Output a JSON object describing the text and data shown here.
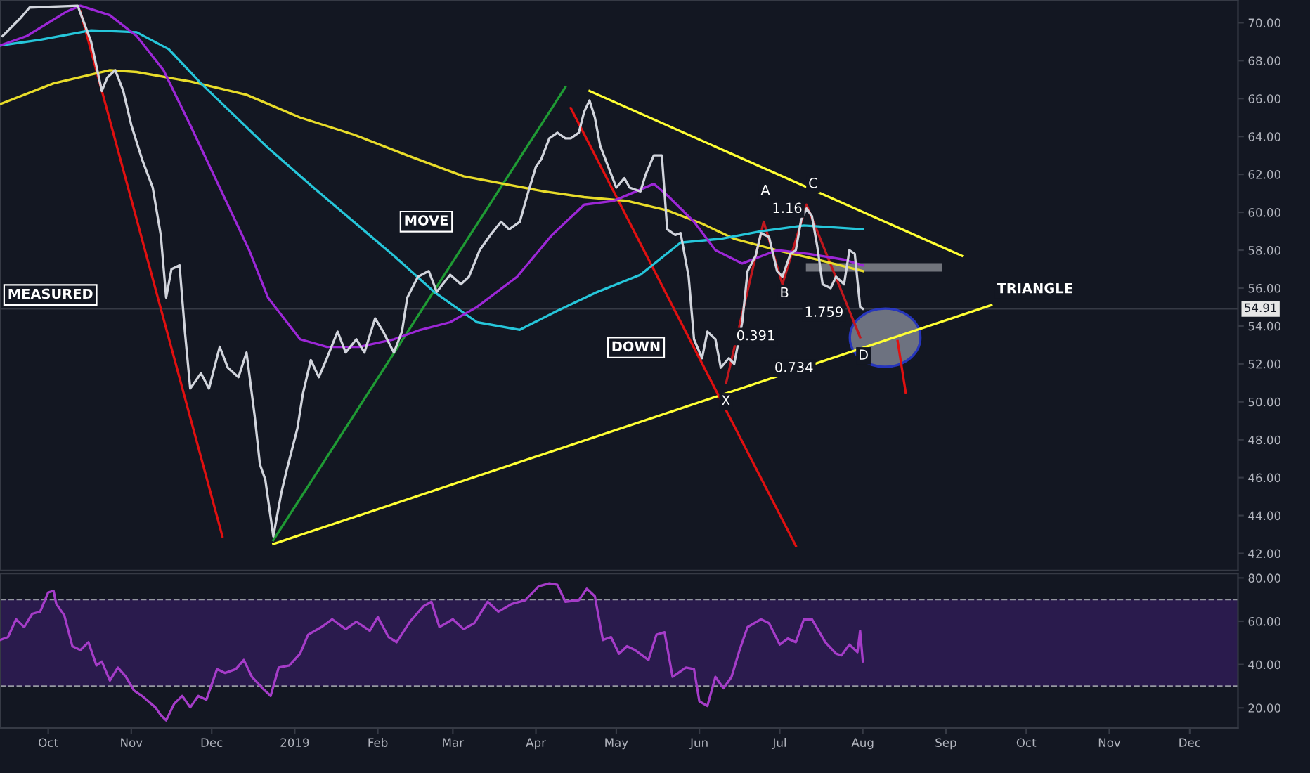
{
  "chart_data": [
    {
      "type": "line",
      "xlim": [
        "2018-09-13",
        "2019-12-19"
      ],
      "ylim": [
        41.1,
        71.2
      ],
      "tick_labels": "y",
      "grid": false,
      "yticks": [
        {
          "value": 42,
          "label": "42.00"
        },
        {
          "value": 44,
          "label": "44.00"
        },
        {
          "value": 46,
          "label": "46.00"
        },
        {
          "value": 48,
          "label": "48.00"
        },
        {
          "value": 50,
          "label": "50.00"
        },
        {
          "value": 52,
          "label": "52.00"
        },
        {
          "value": 54,
          "label": "54.00"
        },
        {
          "value": 56,
          "label": "56.00"
        },
        {
          "value": 58,
          "label": "58.00"
        },
        {
          "value": 60,
          "label": "60.00"
        },
        {
          "value": 62,
          "label": "62.00"
        },
        {
          "value": 64,
          "label": "64.00"
        },
        {
          "value": 66,
          "label": "66.00"
        },
        {
          "value": 68,
          "label": "68.00"
        },
        {
          "value": 70,
          "label": "70.00"
        }
      ],
      "ref_lines": [
        {
          "axis": "y",
          "value": 54.91,
          "label": "54.91",
          "color": "#363a45",
          "line_style": "solid"
        }
      ],
      "annotations": [
        "MEASURED",
        "MOVE",
        "DOWN",
        "TRIANGLE",
        "X",
        "A",
        "B",
        "C",
        "D",
        "0.391",
        "1.16",
        "1.759",
        "0.734"
      ],
      "series": [
        {
          "color": "#ffff33",
          "x": [
            "2018-12-24",
            "2019-09-18"
          ],
          "values": [
            42.5,
            55.1
          ]
        },
        {
          "color": "#ffff33",
          "x": [
            "2019-04-21",
            "2019-09-07"
          ],
          "values": [
            66.4,
            57.7
          ]
        },
        {
          "color": "#e01010",
          "x": [
            "2018-10-13",
            "2018-12-05"
          ],
          "values": [
            70.6,
            42.9
          ]
        },
        {
          "color": "#1f9a34",
          "x": [
            "2018-12-24",
            "2019-04-12"
          ],
          "values": [
            42.7,
            66.6
          ]
        },
        {
          "color": "#e01010",
          "x": [
            "2019-04-14",
            "2019-07-07"
          ],
          "values": [
            65.5,
            42.4
          ]
        },
        {
          "color": "#e01010",
          "x": [
            "2019-08-14",
            "2019-08-17"
          ],
          "values": [
            53.2,
            50.5
          ]
        },
        {
          "color": "#c0181e",
          "x": [
            "2019-06-11",
            "2019-06-25",
            "2019-07-02",
            "2019-07-11",
            "2019-07-31"
          ],
          "values": [
            51.0,
            59.5,
            56.2,
            60.4,
            53.4
          ]
        },
        {
          "color": "#e8dc2a",
          "x": [
            "2018-09-13",
            "2018-10-03",
            "2018-10-24",
            "2018-11-03",
            "2018-11-23",
            "2018-12-14",
            "2019-01-03",
            "2019-01-23",
            "2019-02-12",
            "2019-03-05",
            "2019-03-20",
            "2019-04-04",
            "2019-04-19",
            "2019-05-05",
            "2019-05-20",
            "2019-06-02",
            "2019-06-14",
            "2019-06-30",
            "2019-07-15",
            "2019-08-01"
          ],
          "values": [
            65.7,
            66.8,
            67.5,
            67.4,
            66.9,
            66.2,
            65.0,
            64.1,
            63.0,
            61.9,
            61.5,
            61.1,
            60.8,
            60.6,
            60.1,
            59.4,
            58.6,
            58.0,
            57.5,
            56.9
          ]
        },
        {
          "color": "#26c6da",
          "x": [
            "2018-09-13",
            "2018-09-28",
            "2018-10-17",
            "2018-11-03",
            "2018-11-15",
            "2018-11-27",
            "2018-12-22",
            "2019-01-08",
            "2019-01-23",
            "2019-02-07",
            "2019-02-22",
            "2019-03-10",
            "2019-03-26",
            "2019-04-09",
            "2019-04-24",
            "2019-05-10",
            "2019-05-25",
            "2019-06-09",
            "2019-06-24",
            "2019-07-10",
            "2019-08-01"
          ],
          "values": [
            68.8,
            69.1,
            69.6,
            69.5,
            68.6,
            66.8,
            63.4,
            61.3,
            59.5,
            57.7,
            55.8,
            54.2,
            53.8,
            54.8,
            55.8,
            56.7,
            58.4,
            58.6,
            59.0,
            59.3,
            59.1
          ]
        },
        {
          "color": "#9c27d6",
          "x": [
            "2018-09-13",
            "2018-09-23",
            "2018-10-08",
            "2018-10-13",
            "2018-10-24",
            "2018-11-03",
            "2018-11-13",
            "2018-11-23",
            "2018-12-04",
            "2018-12-15",
            "2018-12-22",
            "2019-01-03",
            "2019-01-13",
            "2019-01-25",
            "2019-02-07",
            "2019-02-17",
            "2019-02-28",
            "2019-03-10",
            "2019-03-25",
            "2019-04-07",
            "2019-04-19",
            "2019-04-30",
            "2019-05-15",
            "2019-05-20",
            "2019-05-30",
            "2019-06-07",
            "2019-06-17",
            "2019-06-30",
            "2019-07-12",
            "2019-07-25",
            "2019-08-01"
          ],
          "values": [
            68.8,
            69.3,
            70.6,
            70.9,
            70.4,
            69.3,
            67.5,
            64.6,
            61.3,
            58.0,
            55.5,
            53.3,
            52.9,
            52.9,
            53.3,
            53.8,
            54.2,
            55.0,
            56.6,
            58.8,
            60.4,
            60.6,
            61.5,
            60.9,
            59.5,
            58.0,
            57.3,
            58.0,
            57.8,
            57.5,
            57.2
          ]
        },
        {
          "color": "#d1d4dc",
          "x": [
            "2018-09-14",
            "2018-09-21",
            "2018-09-24",
            "2018-10-12",
            "2018-10-17",
            "2018-10-21",
            "2018-10-23",
            "2018-10-26",
            "2018-10-29",
            "2018-11-01",
            "2018-11-05",
            "2018-11-09",
            "2018-11-12",
            "2018-11-14",
            "2018-11-16",
            "2018-11-19",
            "2018-11-21",
            "2018-11-23",
            "2018-11-27",
            "2018-11-30",
            "2018-12-04",
            "2018-12-07",
            "2018-12-11",
            "2018-12-14",
            "2018-12-17",
            "2018-12-19",
            "2018-12-21",
            "2018-12-22",
            "2018-12-24",
            "2018-12-27",
            "2018-12-29",
            "2019-01-02",
            "2019-01-04",
            "2019-01-07",
            "2019-01-10",
            "2019-01-13",
            "2019-01-17",
            "2019-01-20",
            "2019-01-24",
            "2019-01-27",
            "2019-01-31",
            "2019-02-03",
            "2019-02-07",
            "2019-02-10",
            "2019-02-12",
            "2019-02-16",
            "2019-02-20",
            "2019-02-23",
            "2019-02-28",
            "2019-03-04",
            "2019-03-07",
            "2019-03-11",
            "2019-03-15",
            "2019-03-19",
            "2019-03-22",
            "2019-03-26",
            "2019-03-29",
            "2019-04-01",
            "2019-04-03",
            "2019-04-06",
            "2019-04-09",
            "2019-04-12",
            "2019-04-14",
            "2019-04-17",
            "2019-04-19",
            "2019-04-21",
            "2019-04-23",
            "2019-04-25",
            "2019-04-28",
            "2019-05-01",
            "2019-05-04",
            "2019-05-06",
            "2019-05-10",
            "2019-05-12",
            "2019-05-15",
            "2019-05-18",
            "2019-05-20",
            "2019-05-23",
            "2019-05-25",
            "2019-05-28",
            "2019-05-30",
            "2019-06-02",
            "2019-06-04",
            "2019-06-07",
            "2019-06-09",
            "2019-06-12",
            "2019-06-14",
            "2019-06-17",
            "2019-06-19",
            "2019-06-22",
            "2019-06-24",
            "2019-06-27",
            "2019-06-30",
            "2019-07-02",
            "2019-07-05",
            "2019-07-07",
            "2019-07-09",
            "2019-07-11",
            "2019-07-13",
            "2019-07-15",
            "2019-07-17",
            "2019-07-20",
            "2019-07-22",
            "2019-07-25",
            "2019-07-27",
            "2019-07-29",
            "2019-07-31",
            "2019-08-01"
          ],
          "values": [
            69.3,
            70.3,
            70.8,
            70.9,
            69.0,
            66.4,
            67.1,
            67.5,
            66.4,
            64.6,
            62.8,
            61.3,
            58.8,
            55.5,
            57.0,
            57.2,
            53.7,
            50.7,
            51.5,
            50.7,
            52.9,
            51.8,
            51.3,
            52.6,
            49.3,
            46.7,
            45.9,
            44.9,
            42.9,
            45.2,
            46.4,
            48.6,
            50.4,
            52.2,
            51.3,
            52.3,
            53.7,
            52.6,
            53.3,
            52.6,
            54.4,
            53.7,
            52.6,
            53.7,
            55.5,
            56.6,
            56.9,
            55.8,
            56.7,
            56.2,
            56.6,
            58.0,
            58.8,
            59.5,
            59.1,
            59.5,
            61.0,
            62.4,
            62.8,
            63.9,
            64.2,
            63.9,
            63.9,
            64.2,
            65.3,
            65.9,
            65.0,
            63.5,
            62.4,
            61.3,
            61.8,
            61.3,
            61.1,
            62.0,
            63.0,
            63.0,
            59.1,
            58.8,
            58.9,
            56.6,
            53.3,
            52.3,
            53.7,
            53.3,
            51.8,
            52.3,
            52.0,
            54.2,
            56.9,
            57.7,
            58.9,
            58.7,
            56.9,
            56.6,
            57.8,
            58.0,
            59.6,
            60.2,
            59.8,
            58.2,
            56.2,
            56.0,
            56.6,
            56.2,
            58.0,
            57.8,
            55.0,
            54.91
          ]
        }
      ]
    },
    {
      "type": "line",
      "xlim": [
        "2018-09-13",
        "2019-12-19"
      ],
      "ylim": [
        10.6,
        82.0
      ],
      "grid": false,
      "xticks": [
        {
          "value": "2018-10-01",
          "label": "Oct"
        },
        {
          "value": "2018-11-01",
          "label": "Nov"
        },
        {
          "value": "2018-12-01",
          "label": "Dec"
        },
        {
          "value": "2019-01-01",
          "label": "2019"
        },
        {
          "value": "2019-02-01",
          "label": "Feb"
        },
        {
          "value": "2019-03-01",
          "label": "Mar"
        },
        {
          "value": "2019-04-01",
          "label": "Apr"
        },
        {
          "value": "2019-05-01",
          "label": "May"
        },
        {
          "value": "2019-06-01",
          "label": "Jun"
        },
        {
          "value": "2019-07-01",
          "label": "Jul"
        },
        {
          "value": "2019-08-01",
          "label": "Aug"
        },
        {
          "value": "2019-09-01",
          "label": "Sep"
        },
        {
          "value": "2019-10-01",
          "label": "Oct"
        },
        {
          "value": "2019-11-01",
          "label": "Nov"
        },
        {
          "value": "2019-12-01",
          "label": "Dec"
        }
      ],
      "yticks": [
        {
          "value": 20,
          "label": "20.00"
        },
        {
          "value": 40,
          "label": "40.00"
        },
        {
          "value": 60,
          "label": "60.00"
        },
        {
          "value": 80,
          "label": "80.00"
        }
      ],
      "ref_lines": [
        {
          "axis": "y",
          "value": 70,
          "color": "#9598a1",
          "line_style": "dashed"
        },
        {
          "axis": "y",
          "value": 30,
          "color": "#9598a1",
          "line_style": "dashed"
        }
      ],
      "bands": [
        {
          "axis": "y",
          "from": 30,
          "to": 70,
          "color": "#2a1b4d"
        }
      ],
      "series": [
        {
          "color": "#a53cc8",
          "x": [
            "2018-09-13",
            "2018-09-16",
            "2018-09-19",
            "2018-09-22",
            "2018-09-25",
            "2018-09-28",
            "2018-10-01",
            "2018-10-03",
            "2018-10-04",
            "2018-10-07",
            "2018-10-10",
            "2018-10-13",
            "2018-10-16",
            "2018-10-19",
            "2018-10-21",
            "2018-10-24",
            "2018-10-27",
            "2018-10-30",
            "2018-11-02",
            "2018-11-05",
            "2018-11-10",
            "2018-11-12",
            "2018-11-14",
            "2018-11-17",
            "2018-11-20",
            "2018-11-23",
            "2018-11-26",
            "2018-11-29",
            "2018-12-03",
            "2018-12-06",
            "2018-12-10",
            "2018-12-13",
            "2018-12-16",
            "2018-12-20",
            "2018-12-23",
            "2018-12-26",
            "2018-12-30",
            "2019-01-03",
            "2019-01-06",
            "2019-01-11",
            "2019-01-15",
            "2019-01-20",
            "2019-01-24",
            "2019-01-29",
            "2019-02-01",
            "2019-02-05",
            "2019-02-08",
            "2019-02-13",
            "2019-02-18",
            "2019-02-21",
            "2019-02-24",
            "2019-03-01",
            "2019-03-05",
            "2019-03-09",
            "2019-03-14",
            "2019-03-18",
            "2019-03-23",
            "2019-03-28",
            "2019-04-02",
            "2019-04-06",
            "2019-04-09",
            "2019-04-12",
            "2019-04-17",
            "2019-04-20",
            "2019-04-23",
            "2019-04-26",
            "2019-04-29",
            "2019-05-02",
            "2019-05-05",
            "2019-05-08",
            "2019-05-13",
            "2019-05-16",
            "2019-05-19",
            "2019-05-22",
            "2019-05-27",
            "2019-05-30",
            "2019-06-01",
            "2019-06-04",
            "2019-06-07",
            "2019-06-10",
            "2019-06-13",
            "2019-06-16",
            "2019-06-19",
            "2019-06-24",
            "2019-06-27",
            "2019-07-01",
            "2019-07-04",
            "2019-07-07",
            "2019-07-10",
            "2019-07-13",
            "2019-07-18",
            "2019-07-22",
            "2019-07-24",
            "2019-07-27",
            "2019-07-30",
            "2019-07-31",
            "2019-08-01"
          ],
          "values": [
            51.3,
            52.7,
            60.9,
            57.3,
            63.4,
            64.4,
            73.3,
            74.0,
            68.0,
            62.7,
            48.5,
            46.7,
            50.3,
            39.6,
            41.4,
            32.6,
            38.6,
            34.3,
            28.0,
            25.5,
            20.2,
            16.6,
            14.2,
            21.9,
            25.5,
            20.2,
            25.5,
            23.7,
            37.9,
            36.1,
            37.9,
            42.1,
            34.3,
            29.0,
            25.5,
            38.6,
            39.6,
            45.0,
            53.8,
            57.3,
            60.9,
            56.3,
            59.8,
            55.6,
            61.9,
            52.7,
            50.3,
            59.8,
            66.9,
            69.0,
            57.3,
            60.9,
            56.3,
            59.1,
            69.0,
            64.4,
            68.0,
            69.7,
            76.1,
            77.5,
            76.8,
            69.0,
            69.7,
            75.0,
            71.5,
            51.3,
            52.7,
            45.0,
            48.5,
            46.7,
            42.1,
            53.8,
            54.9,
            34.3,
            38.6,
            37.9,
            23.0,
            20.9,
            34.3,
            29.0,
            34.3,
            46.7,
            57.3,
            60.9,
            59.1,
            49.2,
            52.0,
            50.3,
            60.9,
            60.9,
            50.3,
            45.0,
            44.2,
            49.2,
            45.7,
            55.6,
            41.4
          ]
        }
      ]
    }
  ]
}
